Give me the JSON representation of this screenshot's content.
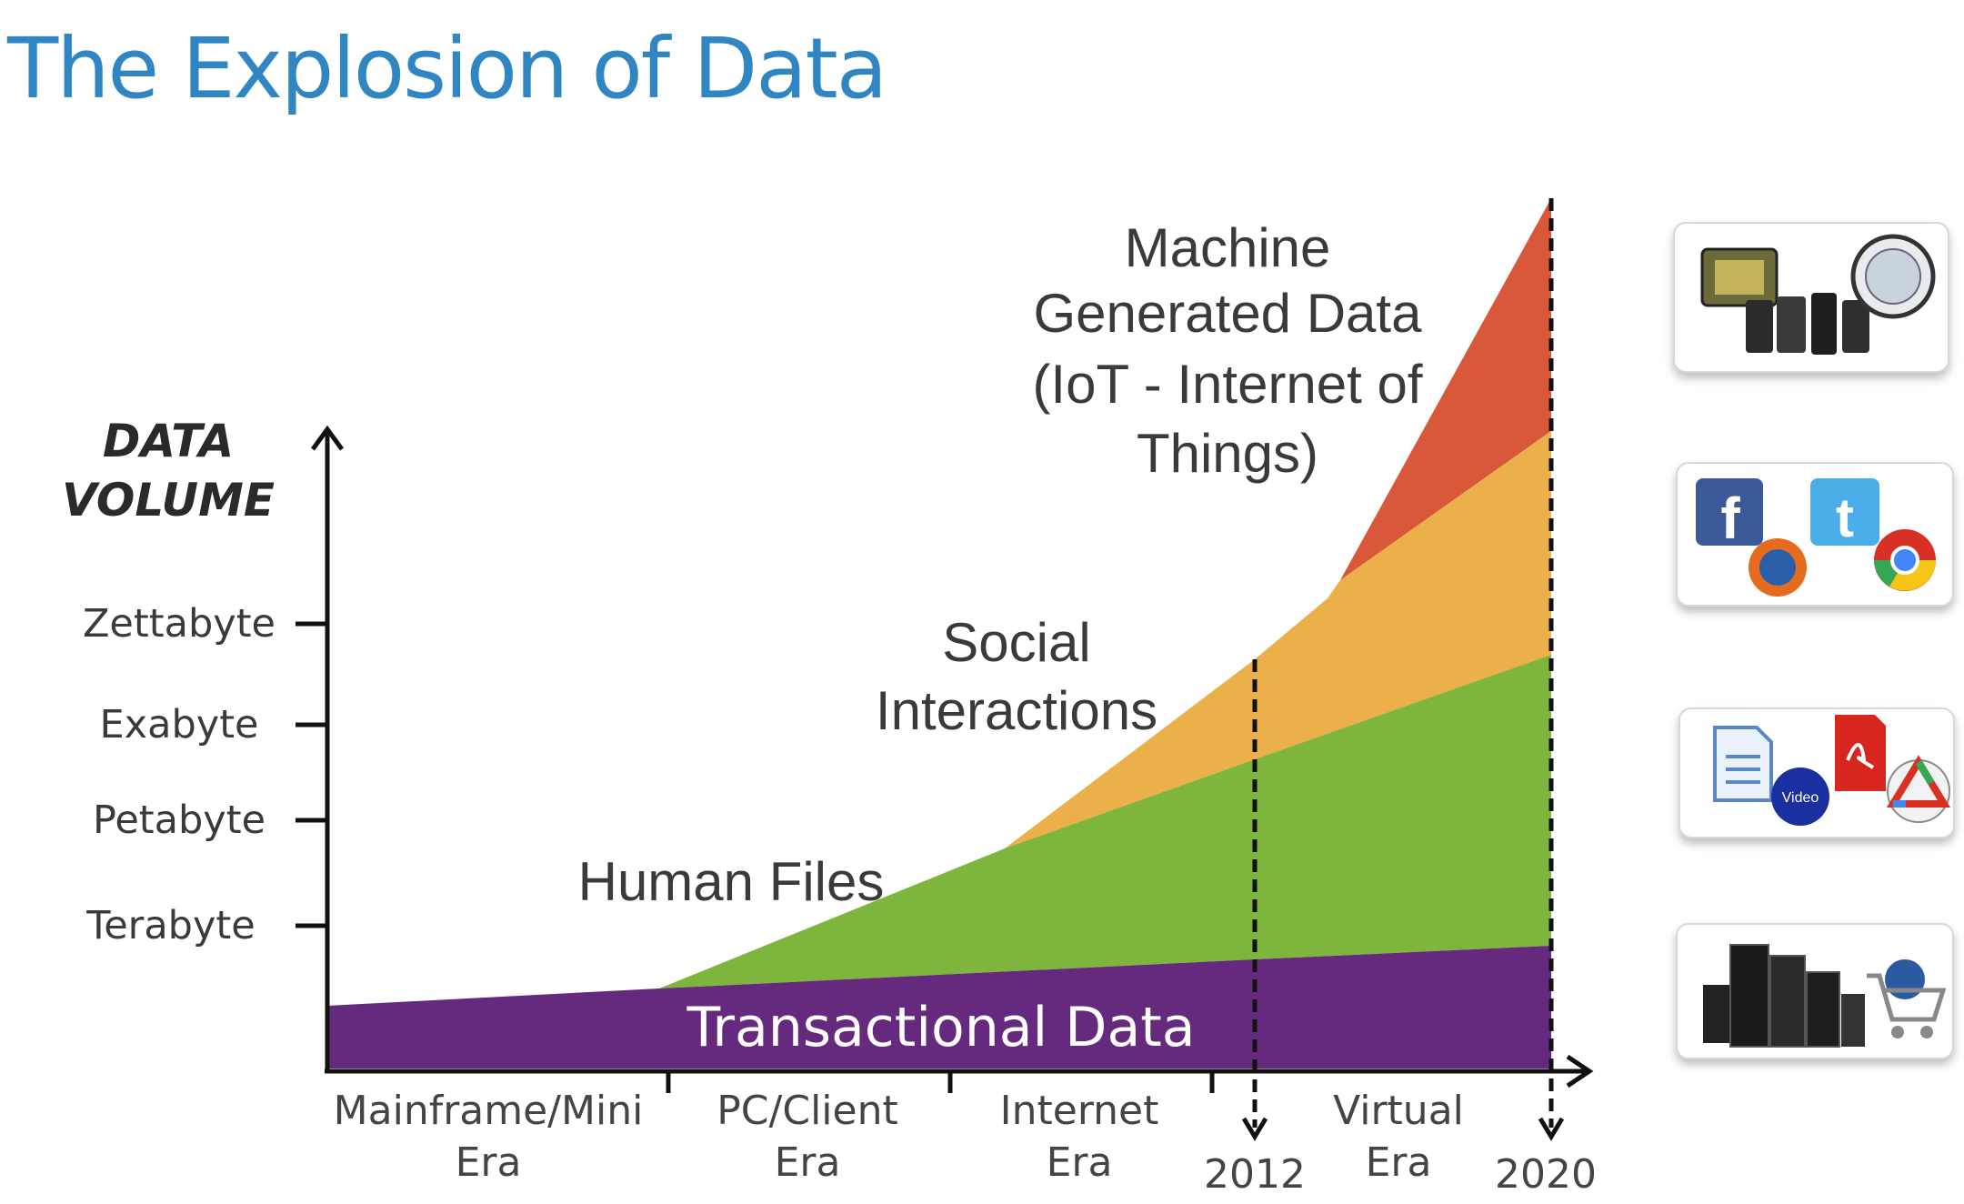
{
  "slide": {
    "title": "The Explosion of Data"
  },
  "chart_data": {
    "type": "area",
    "stacked": true,
    "title": "The Explosion of Data",
    "ylabel": "DATA VOLUME",
    "y_tick_labels": [
      "Terabyte",
      "Petabyte",
      "Exabyte",
      "Zettabyte"
    ],
    "x_period_labels": [
      "Mainframe/Mini Era",
      "PC/Client Era",
      "Internet Era",
      "Virtual Era"
    ],
    "x_markers": [
      "2012",
      "2020"
    ],
    "series": [
      {
        "name": "Transactional Data",
        "color": "#652a7e",
        "label_style": "inside-band"
      },
      {
        "name": "Human Files",
        "color": "#7db53d"
      },
      {
        "name": "Social Interactions",
        "color": "#ecb04a"
      },
      {
        "name": "Machine Generated Data (IoT - Internet of Things)",
        "color": "#d95839"
      }
    ],
    "annotations": {
      "machine": [
        "Machine",
        "Generated Data",
        "(IoT - Internet of",
        "Things)"
      ],
      "social": [
        "Social",
        "Interactions"
      ],
      "human": "Human Files",
      "transactional": "Transactional Data"
    },
    "x_period_label_lines": [
      [
        "Mainframe/Mini",
        "Era"
      ],
      [
        "PC/Client",
        "Era"
      ],
      [
        "Internet",
        "Era"
      ],
      [
        "Virtual",
        "Era"
      ]
    ],
    "ylabel_lines": [
      "DATA",
      "VOLUME"
    ],
    "grid": false,
    "legend": "none (labels placed on chart)"
  },
  "side_icons": [
    {
      "name": "devices-and-sensors-icon-group"
    },
    {
      "name": "social-web-icon-group"
    },
    {
      "name": "documents-media-icon-group"
    },
    {
      "name": "servers-commerce-icon-group"
    }
  ]
}
